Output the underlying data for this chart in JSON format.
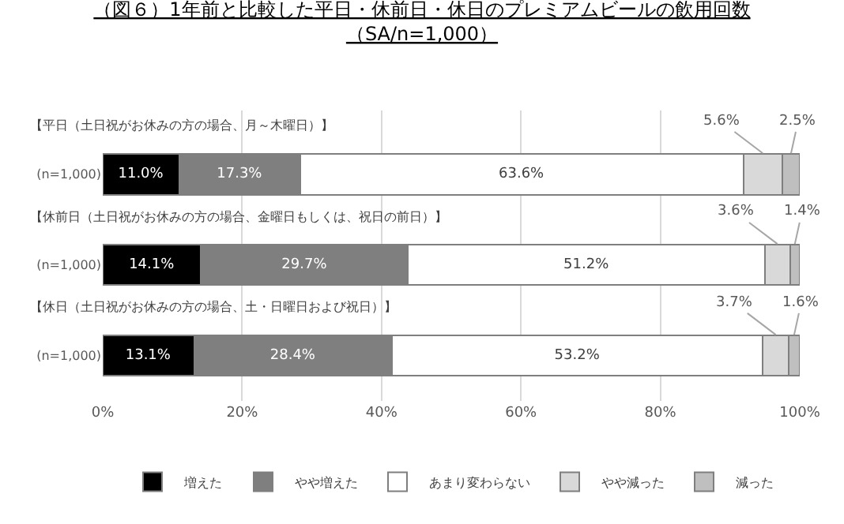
{
  "chart_data": {
    "type": "bar",
    "orientation": "horizontal",
    "stacked": true,
    "title": "（図６）1年前と比較した平日・休前日・休日のプレミアムビールの飲用回数",
    "subtitle": "（SA/n=1,000）",
    "categories": [
      "(n=1,000)",
      "(n=1,000)",
      "(n=1,000)"
    ],
    "annotations": [
      "【平日（土日祝がお休みの方の場合、月～木曜日）】",
      "【休前日（土日祝がお休みの方の場合、金曜日もしくは、祝日の前日）】",
      "【休日（土日祝がお休みの方の場合、土・日曜日および祝日）】"
    ],
    "series": [
      {
        "name": "増えた",
        "color": "#000000",
        "values": [
          11.0,
          14.1,
          13.1
        ],
        "value_labels": [
          "11.0%",
          "14.1%",
          "13.1%"
        ]
      },
      {
        "name": "やや増えた",
        "color": "#7f7f7f",
        "values": [
          17.3,
          29.7,
          28.4
        ],
        "value_labels": [
          "17.3%",
          "29.7%",
          "28.4%"
        ]
      },
      {
        "name": "あまり変わらない",
        "color": "#ffffff",
        "values": [
          63.6,
          51.2,
          53.2
        ],
        "value_labels": [
          "63.6%",
          "51.2%",
          "53.2%"
        ]
      },
      {
        "name": "やや減った",
        "color": "#d9d9d9",
        "values": [
          5.6,
          3.6,
          3.7
        ],
        "value_labels": [
          "5.6%",
          "3.6%",
          "3.7%"
        ]
      },
      {
        "name": "減った",
        "color": "#bfbfbf",
        "values": [
          2.5,
          1.4,
          1.6
        ],
        "value_labels": [
          "2.5%",
          "1.4%",
          "1.6%"
        ]
      }
    ],
    "xlim": [
      0,
      100
    ],
    "xticks": [
      {
        "value": 0,
        "label": "0%"
      },
      {
        "value": 20,
        "label": "20%"
      },
      {
        "value": 40,
        "label": "40%"
      },
      {
        "value": 60,
        "label": "60%"
      },
      {
        "value": 80,
        "label": "80%"
      },
      {
        "value": 100,
        "label": "100%"
      }
    ],
    "grid": "x",
    "legend": "bottom"
  }
}
